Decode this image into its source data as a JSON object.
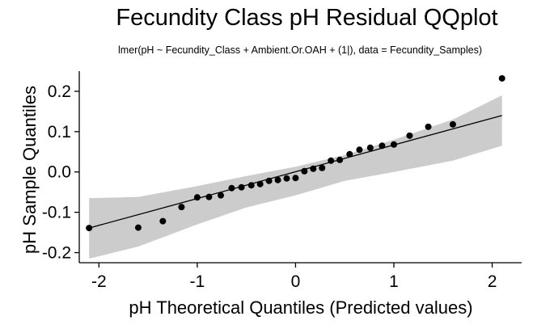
{
  "chart_data": {
    "type": "scatter",
    "title": "Fecundity Class pH Residual QQplot",
    "subtitle": "lmer(pH ~ Fecundity_Class + Ambient.Or.OAH + (1|), data = Fecundity_Samples)",
    "xlabel": "pH Theoretical Quantiles (Predicted values)",
    "ylabel": "pH Sample Quantiles",
    "xlim": [
      -2.2,
      2.3
    ],
    "ylim": [
      -0.225,
      0.25
    ],
    "xticks": [
      -2,
      -1,
      0,
      1,
      2
    ],
    "xtick_labels": [
      "-2",
      "-1",
      "0",
      "1",
      "2"
    ],
    "yticks": [
      -0.2,
      -0.1,
      0.0,
      0.1,
      0.2
    ],
    "ytick_labels": [
      "-0.2",
      "-0.1",
      "0.0",
      "0.1",
      "0.2"
    ],
    "grid": false,
    "series": [
      {
        "kind": "points",
        "x": [
          -2.1,
          -1.6,
          -1.35,
          -1.16,
          -1.0,
          -0.88,
          -0.76,
          -0.65,
          -0.55,
          -0.45,
          -0.36,
          -0.27,
          -0.18,
          -0.09,
          0.0,
          0.09,
          0.18,
          0.27,
          0.36,
          0.45,
          0.55,
          0.65,
          0.76,
          0.88,
          1.0,
          1.16,
          1.35,
          1.6,
          2.1
        ],
        "y": [
          -0.139,
          -0.138,
          -0.122,
          -0.087,
          -0.063,
          -0.062,
          -0.058,
          -0.04,
          -0.038,
          -0.033,
          -0.03,
          -0.022,
          -0.02,
          -0.016,
          -0.015,
          0.002,
          0.008,
          0.01,
          0.028,
          0.03,
          0.044,
          0.055,
          0.06,
          0.065,
          0.068,
          0.09,
          0.112,
          0.118,
          0.232
        ]
      },
      {
        "kind": "reference-line",
        "x": [
          -2.1,
          2.1
        ],
        "y": [
          -0.139,
          0.14
        ]
      },
      {
        "kind": "confidence-band",
        "x": [
          -2.1,
          -1.6,
          -1.0,
          -0.5,
          0.0,
          0.5,
          1.0,
          1.6,
          2.1
        ],
        "upper": [
          -0.065,
          -0.062,
          -0.035,
          -0.01,
          0.013,
          0.042,
          0.08,
          0.13,
          0.19
        ],
        "lower": [
          -0.215,
          -0.185,
          -0.13,
          -0.088,
          -0.058,
          -0.022,
          0.0,
          0.028,
          0.065
        ]
      }
    ]
  },
  "colors": {
    "points": "#000000",
    "line": "#000000",
    "band": "#cccccc",
    "axis": "#000000"
  }
}
